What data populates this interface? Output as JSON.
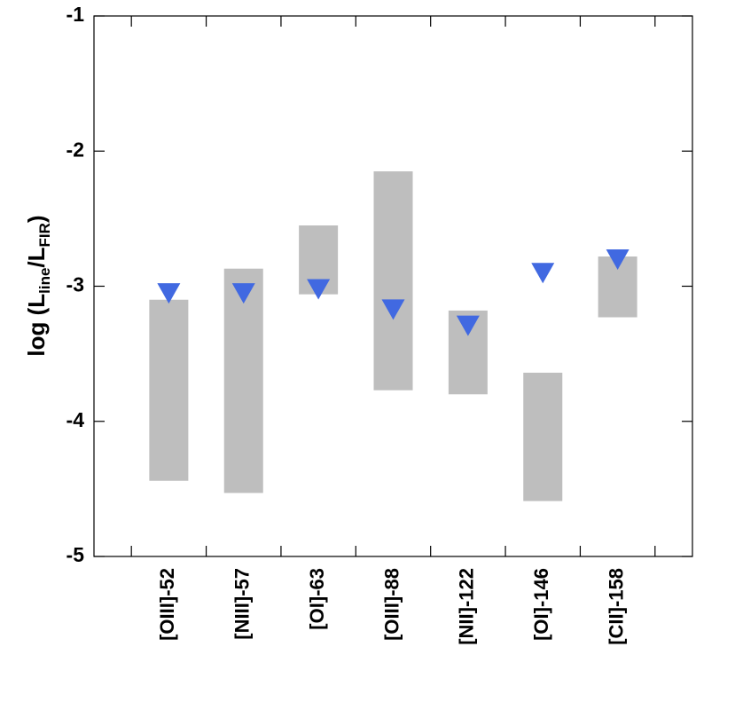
{
  "chart_data": {
    "type": "range_bar",
    "categories": [
      "[OIII]-52",
      "[NIII]-57",
      "[OI]-63",
      "[OIII]-88",
      "[NII]-122",
      "[OI]-146",
      "[CII]-158"
    ],
    "series": [
      {
        "low": [
          -4.44,
          -4.53,
          -3.06,
          -3.77,
          -3.8,
          -4.59,
          -3.23
        ],
        "high": [
          -3.1,
          -2.87,
          -2.55,
          -2.15,
          -3.18,
          -3.64,
          -2.78
        ],
        "color": "#bebebe"
      },
      {
        "values": [
          -3.05,
          -3.05,
          -3.02,
          -3.17,
          -3.29,
          -2.9,
          -2.8
        ],
        "color": "#4169e1",
        "marker": "triangle-down"
      }
    ],
    "y_label": [
      "log (L",
      "line",
      "/L",
      "FIR",
      ")"
    ],
    "ylim": [
      -5,
      -1
    ],
    "yticks": [
      -5,
      -4,
      -3,
      -2,
      -1
    ]
  }
}
